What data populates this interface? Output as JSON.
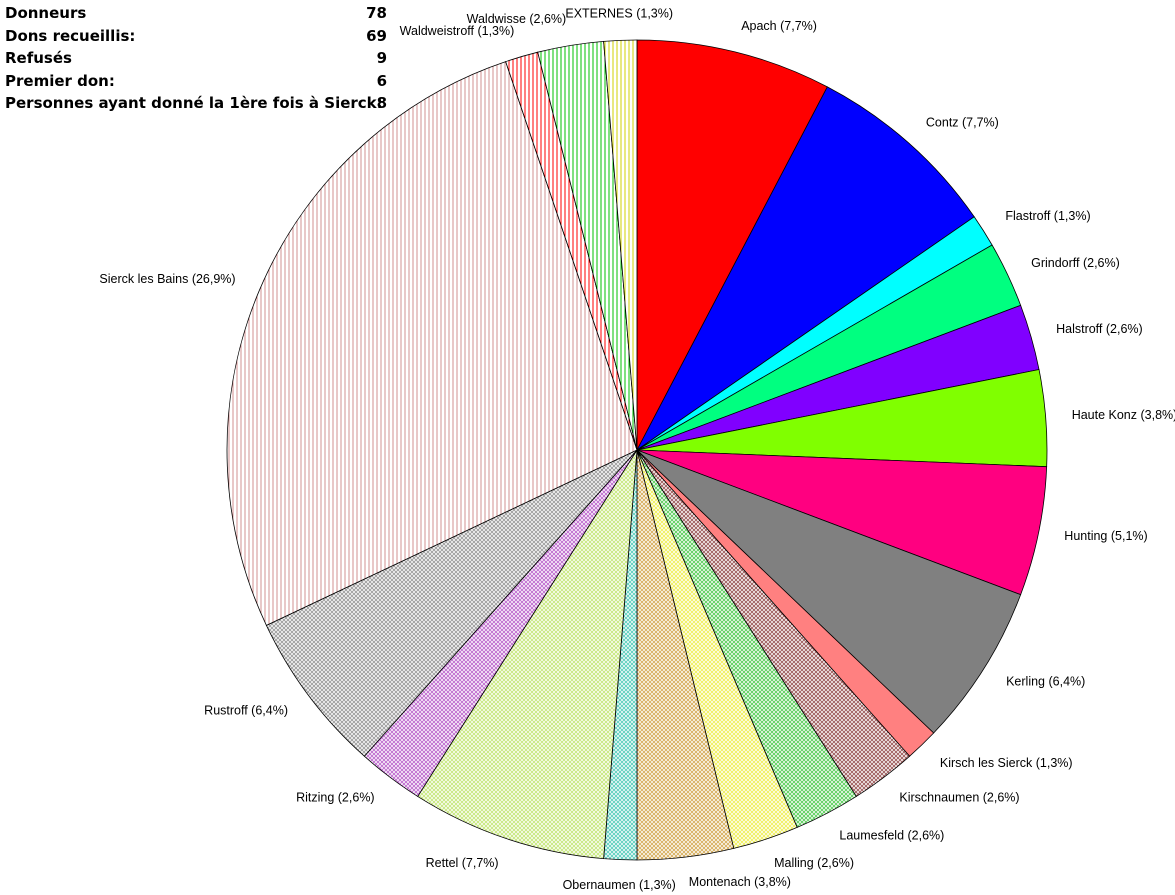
{
  "stats": [
    {
      "label": "Donneurs",
      "value": "78"
    },
    {
      "label": "Dons recueillis:",
      "value": "69"
    },
    {
      "label": "Refusés",
      "value": "9"
    },
    {
      "label": "Premier don:",
      "value": "6"
    },
    {
      "label": "Personnes ayant donné la 1ère fois à Sierck:",
      "value": "8"
    }
  ],
  "chart_data": {
    "type": "pie",
    "title": "",
    "start_angle": "top",
    "direction": "clockwise",
    "slices": [
      {
        "label": "Apach (7,7%)",
        "value": 7.7,
        "color": "#ff0000",
        "fill": "solid"
      },
      {
        "label": "Contz (7,7%)",
        "value": 7.7,
        "color": "#0000ff",
        "fill": "solid"
      },
      {
        "label": "Flastroff (1,3%)",
        "value": 1.3,
        "color": "#00ffff",
        "fill": "solid"
      },
      {
        "label": "Grindorff (2,6%)",
        "value": 2.6,
        "color": "#00ff80",
        "fill": "solid"
      },
      {
        "label": "Halstroff (2,6%)",
        "value": 2.6,
        "color": "#8000ff",
        "fill": "solid"
      },
      {
        "label": "Haute Konz (3,8%)",
        "value": 3.8,
        "color": "#80ff00",
        "fill": "solid"
      },
      {
        "label": "Hunting (5,1%)",
        "value": 5.1,
        "color": "#ff0080",
        "fill": "solid"
      },
      {
        "label": "Kerling (6,4%)",
        "value": 6.4,
        "color": "#808080",
        "fill": "solid"
      },
      {
        "label": "Kirsch les Sierck (1,3%)",
        "value": 1.3,
        "color": "#ff8080",
        "fill": "solid"
      },
      {
        "label": "Kirschnaumen (2,6%)",
        "value": 2.6,
        "color": "#a06060",
        "fill": "crosshatch"
      },
      {
        "label": "Laumesfeld (2,6%)",
        "value": 2.6,
        "color": "#60d060",
        "fill": "crosshatch"
      },
      {
        "label": "Malling (2,6%)",
        "value": 2.6,
        "color": "#f0f060",
        "fill": "crosshatch"
      },
      {
        "label": "Montenach (3,8%)",
        "value": 3.8,
        "color": "#d8b060",
        "fill": "crosshatch"
      },
      {
        "label": "Obernaumen (1,3%)",
        "value": 1.3,
        "color": "#60d0c0",
        "fill": "crosshatch"
      },
      {
        "label": "Rettel (7,7%)",
        "value": 7.7,
        "color": "#c8e880",
        "fill": "crosshatch"
      },
      {
        "label": "Ritzing (2,6%)",
        "value": 2.6,
        "color": "#c070d0",
        "fill": "crosshatch"
      },
      {
        "label": "Rustroff (6,4%)",
        "value": 6.4,
        "color": "#a0a0a0",
        "fill": "crosshatch"
      },
      {
        "label": "Sierck les Bains (26,9%)",
        "value": 26.9,
        "color": "#d09090",
        "fill": "vlines"
      },
      {
        "label": "Waldweistroff (1,3%)",
        "value": 1.3,
        "color": "#ff0000",
        "fill": "vlines"
      },
      {
        "label": "Waldwisse (2,6%)",
        "value": 2.6,
        "color": "#00c000",
        "fill": "vlines"
      },
      {
        "label": "EXTERNES (1,3%)",
        "value": 1.3,
        "color": "#d0d000",
        "fill": "vlines"
      }
    ]
  }
}
